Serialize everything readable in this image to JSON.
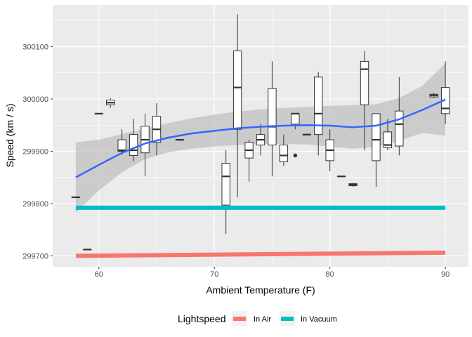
{
  "chart_data": {
    "type": "boxplot",
    "xlabel": "Ambient Temperature (F)",
    "ylabel": "Speed (km / s)",
    "xlim": [
      56,
      92
    ],
    "ylim": [
      299679,
      300180
    ],
    "x_ticks": [
      60,
      70,
      80,
      90
    ],
    "y_ticks": [
      299700,
      299800,
      299900,
      300000,
      300100
    ],
    "x_tick_labels": [
      "60",
      "70",
      "80",
      "90"
    ],
    "y_tick_labels": [
      "299700",
      "299800",
      "299900",
      "300000",
      "300100"
    ],
    "grid": true,
    "colors": {
      "panel_background": "#ebebeb",
      "grid": "#ffffff",
      "box_line": "#333333",
      "smooth_line": "#3366ff",
      "ribbon": "#bebebe",
      "in_air": "#f8766d",
      "in_vacuum": "#00bfc4"
    },
    "boxes": [
      {
        "x": 58,
        "min": 299812,
        "q1": 299812,
        "median": 299812,
        "q3": 299812,
        "max": 299812
      },
      {
        "x": 59,
        "min": 299712,
        "q1": 299712,
        "median": 299712,
        "q3": 299712,
        "max": 299712
      },
      {
        "x": 60,
        "min": 299972,
        "q1": 299972,
        "median": 299972,
        "q3": 299972,
        "max": 299972
      },
      {
        "x": 61,
        "min": 299983,
        "q1": 299989,
        "median": 299993,
        "q3": 299998,
        "max": 300001
      },
      {
        "x": 62,
        "min": 299893,
        "q1": 299900,
        "median": 299902,
        "q3": 299922,
        "max": 299942
      },
      {
        "x": 63,
        "min": 299881,
        "q1": 299892,
        "median": 299902,
        "q3": 299932,
        "max": 299962
      },
      {
        "x": 64,
        "min": 299852,
        "q1": 299897,
        "median": 299922,
        "q3": 299948,
        "max": 299972
      },
      {
        "x": 65,
        "min": 299892,
        "q1": 299917,
        "median": 299942,
        "q3": 299967,
        "max": 299992
      },
      {
        "x": 67,
        "min": 299922,
        "q1": 299922,
        "median": 299922,
        "q3": 299922,
        "max": 299922
      },
      {
        "x": 71,
        "min": 299742,
        "q1": 299797,
        "median": 299852,
        "q3": 299877,
        "max": 299902
      },
      {
        "x": 72,
        "min": 299812,
        "q1": 299942,
        "median": 300022,
        "q3": 300092,
        "max": 300162
      },
      {
        "x": 73,
        "min": 299842,
        "q1": 299887,
        "median": 299902,
        "q3": 299917,
        "max": 299922
      },
      {
        "x": 74,
        "min": 299892,
        "q1": 299912,
        "median": 299922,
        "q3": 299932,
        "max": 299952
      },
      {
        "x": 75,
        "min": 299852,
        "q1": 299912,
        "median": 299947,
        "q3": 300020,
        "max": 300072
      },
      {
        "x": 76,
        "min": 299872,
        "q1": 299880,
        "median": 299892,
        "q3": 299912,
        "max": 299932
      },
      {
        "x": 77,
        "min": 299942,
        "q1": 299952,
        "median": 299972,
        "q3": 299972,
        "max": 299972,
        "outliers": [
          299892
        ]
      },
      {
        "x": 78,
        "min": 299932,
        "q1": 299932,
        "median": 299932,
        "q3": 299932,
        "max": 299932
      },
      {
        "x": 79,
        "min": 299892,
        "q1": 299932,
        "median": 299972,
        "q3": 300042,
        "max": 300052
      },
      {
        "x": 80,
        "min": 299862,
        "q1": 299882,
        "median": 299902,
        "q3": 299922,
        "max": 299942
      },
      {
        "x": 81,
        "min": 299852,
        "q1": 299852,
        "median": 299852,
        "q3": 299852,
        "max": 299852
      },
      {
        "x": 82,
        "min": 299832,
        "q1": 299834,
        "median": 299836,
        "q3": 299838,
        "max": 299840
      },
      {
        "x": 83,
        "min": 299902,
        "q1": 299989,
        "median": 300057,
        "q3": 300072,
        "max": 300092
      },
      {
        "x": 84,
        "min": 299832,
        "q1": 299882,
        "median": 299922,
        "q3": 299972,
        "max": 299972
      },
      {
        "x": 85,
        "min": 299902,
        "q1": 299907,
        "median": 299912,
        "q3": 299937,
        "max": 299962
      },
      {
        "x": 86,
        "min": 299892,
        "q1": 299910,
        "median": 299952,
        "q3": 299977,
        "max": 300042
      },
      {
        "x": 89,
        "min": 300002,
        "q1": 300004,
        "median": 300007,
        "q3": 300009,
        "max": 300012
      },
      {
        "x": 90,
        "min": 299952,
        "q1": 299972,
        "median": 299982,
        "q3": 300022,
        "max": 300072
      }
    ],
    "smooth": {
      "x": [
        58,
        60,
        62,
        64,
        66,
        68,
        70,
        72,
        74,
        76,
        78,
        80,
        82,
        84,
        86,
        88,
        90
      ],
      "y": [
        299850,
        299874,
        299897,
        299915,
        299926,
        299934,
        299939,
        299944,
        299947,
        299949,
        299950,
        299949,
        299946,
        299949,
        299961,
        299979,
        299999
      ],
      "lower": [
        299783,
        299825,
        299860,
        299885,
        299898,
        299905,
        299909,
        299912,
        299914,
        299914,
        299913,
        299909,
        299905,
        299908,
        299920,
        299935,
        299930
      ],
      "upper": [
        299917,
        299922,
        299933,
        299944,
        299954,
        299963,
        299970,
        299976,
        299980,
        299983,
        299985,
        299987,
        299988,
        299990,
        300002,
        300025,
        300068
      ]
    },
    "series": [
      {
        "name": "In Air",
        "x": [
          58,
          90
        ],
        "values": [
          299700,
          299706
        ]
      },
      {
        "name": "In Vacuum",
        "x": [
          58,
          90
        ],
        "values": [
          299792,
          299792
        ]
      }
    ],
    "legend": {
      "title": "Lightspeed",
      "position": "bottom",
      "labels": [
        "In Air",
        "In Vacuum"
      ]
    }
  }
}
